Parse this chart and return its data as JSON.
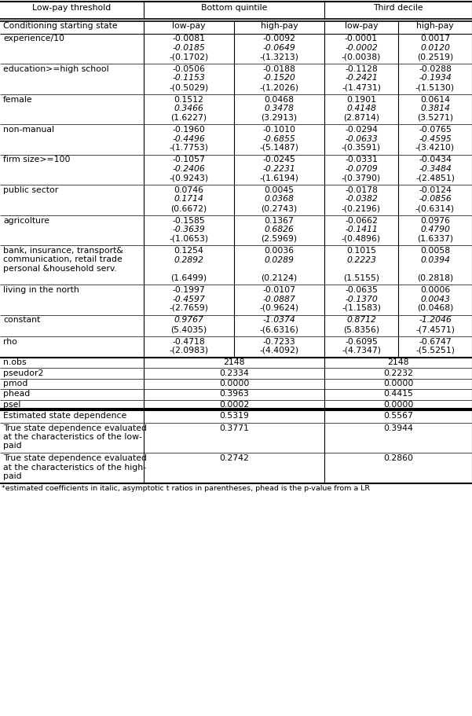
{
  "col_headers_row1": [
    "Low-pay threshold",
    "Bottom quintile",
    "Third decile"
  ],
  "col_headers_row2": [
    "Conditioning starting state",
    "low-pay",
    "high-pay",
    "low-pay",
    "high-pay"
  ],
  "rows": [
    {
      "label": "experience/10",
      "data": [
        "-0.0081",
        "-0.0092",
        "-0.0001",
        "0.0017"
      ],
      "italic": [
        "-0.0185",
        "-0.0649",
        "-0.0002",
        "0.0120"
      ],
      "paren": [
        "-(0.1702)",
        "-(1.3213)",
        "-(0.0038)",
        "(0.2519)"
      ],
      "data_italic": false
    },
    {
      "label": "education>=high school",
      "data": [
        "-0.0506",
        "-0.0188",
        "-0.1128",
        "-0.0288"
      ],
      "italic": [
        "-0.1153",
        "-0.1520",
        "-0.2421",
        "-0.1934"
      ],
      "paren": [
        "-(0.5029)",
        "-(1.2026)",
        "-(1.4731)",
        "-(1.5130)"
      ],
      "data_italic": false
    },
    {
      "label": "female",
      "data": [
        "0.1512",
        "0.0468",
        "0.1901",
        "0.0614"
      ],
      "italic": [
        "0.3466",
        "0.3478",
        "0.4148",
        "0.3814"
      ],
      "paren": [
        "(1.6227)",
        "(3.2913)",
        "(2.8714)",
        "(3.5271)"
      ],
      "data_italic": false
    },
    {
      "label": "non-manual",
      "data": [
        "-0.1960",
        "-0.1010",
        "-0.0294",
        "-0.0765"
      ],
      "italic": [
        "-0.4496",
        "-0.6855",
        "-0.0633",
        "-0.4595"
      ],
      "paren": [
        "-(1.7753)",
        "-(5.1487)",
        "-(0.3591)",
        "-(3.4210)"
      ],
      "data_italic": false
    },
    {
      "label": "firm size>=100",
      "data": [
        "-0.1057",
        "-0.0245",
        "-0.0331",
        "-0.0434"
      ],
      "italic": [
        "-0.2406",
        "-0.2231",
        "-0.0709",
        "-0.3484"
      ],
      "paren": [
        "-(0.9243)",
        "-(1.6194)",
        "-(0.3790)",
        "-(2.4851)"
      ],
      "data_italic": false
    },
    {
      "label": "public sector",
      "data": [
        "0.0746",
        "0.0045",
        "-0.0178",
        "-0.0124"
      ],
      "italic": [
        "0.1714",
        "0.0368",
        "-0.0382",
        "-0.0856"
      ],
      "paren": [
        "(0.6672)",
        "(0.2743)",
        "-(0.2196)",
        "-(0.6314)"
      ],
      "data_italic": false
    },
    {
      "label": "agricolture",
      "data": [
        "-0.1585",
        "0.1367",
        "-0.0662",
        "0.0976"
      ],
      "italic": [
        "-0.3639",
        "0.6826",
        "-0.1411",
        "0.4790"
      ],
      "paren": [
        "-(1.0653)",
        "(2.5969)",
        "-(0.4896)",
        "(1.6337)"
      ],
      "data_italic": false
    },
    {
      "label": "bank, insurance, transport&\ncommunication, retail trade\npersonal &household serv.",
      "data": [
        "0.1254",
        "0.0036",
        "0.1015",
        "0.0058"
      ],
      "italic": [
        "0.2892",
        "0.0289",
        "0.2223",
        "0.0394"
      ],
      "paren": [
        "(1.6499)",
        "(0.2124)",
        "(1.5155)",
        "(0.2818)"
      ],
      "data_italic": false,
      "extra_gap": true
    },
    {
      "label": "living in the north",
      "data": [
        "-0.1997",
        "-0.0107",
        "-0.0635",
        "0.0006"
      ],
      "italic": [
        "-0.4597",
        "-0.0887",
        "-0.1370",
        "0.0043"
      ],
      "paren": [
        "-(2.7659)",
        "-(0.9624)",
        "-(1.1583)",
        "(0.0468)"
      ],
      "data_italic": false
    },
    {
      "label": "constant",
      "data": [
        "0.9767",
        "-1.0374",
        "0.8712",
        "-1.2046"
      ],
      "italic": [],
      "paren": [
        "(5.4035)",
        "-(6.6316)",
        "(5.8356)",
        "-(7.4571)"
      ],
      "data_italic": true
    },
    {
      "label": "rho",
      "data": [
        "-0.4718",
        "-0.7233",
        "-0.6095",
        "-0.6747"
      ],
      "italic": [],
      "paren": [
        "-(2.0983)",
        "-(4.4092)",
        "-(4.7347)",
        "-(5.5251)"
      ],
      "data_italic": false,
      "thick_bottom": true
    }
  ],
  "stats": [
    {
      "label": "n.obs",
      "bq": "2148",
      "td": "2148"
    },
    {
      "label": "pseudor2",
      "bq": "0.2334",
      "td": "0.2232"
    },
    {
      "label": "pmod",
      "bq": "0.0000",
      "td": "0.0000"
    },
    {
      "label": "phead",
      "bq": "0.3963",
      "td": "0.4415"
    },
    {
      "label": "psel",
      "bq": "0.0002",
      "td": "0.0000"
    }
  ],
  "state_dep": [
    {
      "label": "Estimated state dependence",
      "bq": "0.5319",
      "td": "0.5567",
      "nlines": 1
    },
    {
      "label": "True state dependence evaluated\nat the characteristics of the low-\npaid",
      "bq": "0.3771",
      "td": "0.3944",
      "nlines": 3
    },
    {
      "label": "True state dependence evaluated\nat the characteristics of the high-\npaid",
      "bq": "0.2742",
      "td": "0.2860",
      "nlines": 3
    }
  ],
  "footnote": "*estimated coefficients in italic, asymptotic t ratios in parentheses, phead is the p-value from a LR",
  "bg_color": "#ffffff"
}
